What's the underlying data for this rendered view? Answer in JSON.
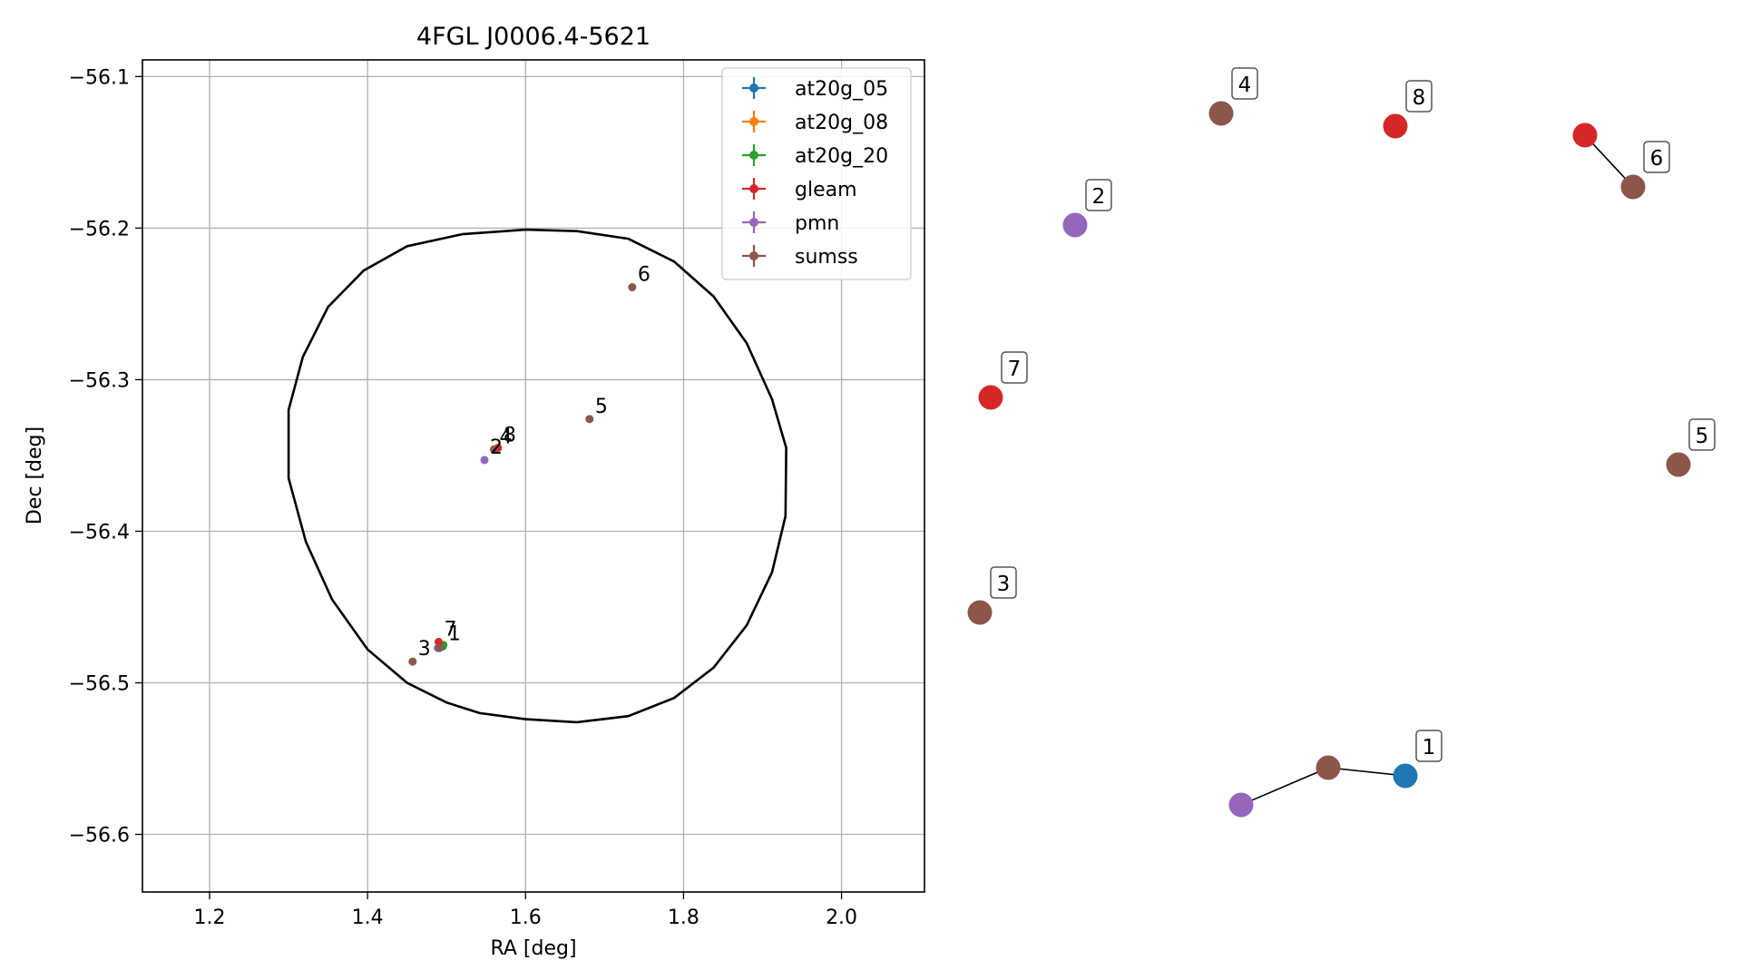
{
  "chart_data": {
    "type": "scatter",
    "title": "4FGL J0006.4-5621",
    "xlabel": "RA [deg]",
    "ylabel": "Dec [deg]",
    "xlim": [
      1.115,
      2.105
    ],
    "ylim": [
      -56.638,
      -56.089
    ],
    "xticks": [
      1.2,
      1.4,
      1.6,
      1.8,
      2.0
    ],
    "xtick_labels": [
      "1.2",
      "1.4",
      "1.6",
      "1.8",
      "2.0"
    ],
    "yticks": [
      -56.1,
      -56.2,
      -56.3,
      -56.4,
      -56.5,
      -56.6
    ],
    "ytick_labels": [
      "−56.1",
      "−56.2",
      "−56.3",
      "−56.4",
      "−56.5",
      "−56.6"
    ],
    "grid": true,
    "legend_position": "top-right",
    "series": [
      {
        "name": "at20g_05",
        "color": "#1f77b4",
        "points": [
          {
            "ra": 1.495,
            "dec": -56.476,
            "label": "1"
          }
        ]
      },
      {
        "name": "at20g_08",
        "color": "#ff7f0e",
        "points": []
      },
      {
        "name": "at20g_20",
        "color": "#2ca02c",
        "points": [
          {
            "ra": 1.496,
            "dec": -56.475
          }
        ]
      },
      {
        "name": "gleam",
        "color": "#d62728",
        "points": [
          {
            "ra": 1.49,
            "dec": -56.473,
            "label": "7"
          },
          {
            "ra": 1.565,
            "dec": -56.345,
            "label": "8"
          }
        ]
      },
      {
        "name": "pmn",
        "color": "#9467bd",
        "points": [
          {
            "ra": 1.548,
            "dec": -56.353,
            "label": "2"
          },
          {
            "ra": 1.489,
            "dec": -56.477
          }
        ]
      },
      {
        "name": "sumss",
        "color": "#8c564b",
        "points": [
          {
            "ra": 1.491,
            "dec": -56.477
          },
          {
            "ra": 1.457,
            "dec": -56.486,
            "label": "3"
          },
          {
            "ra": 1.56,
            "dec": -56.346,
            "label": "4"
          },
          {
            "ra": 1.681,
            "dec": -56.326,
            "label": "5"
          },
          {
            "ra": 1.735,
            "dec": -56.239,
            "label": "6"
          }
        ]
      }
    ],
    "ellipse": {
      "color": "#000000",
      "points": [
        [
          1.665,
          -56.202
        ],
        [
          1.73,
          -56.207
        ],
        [
          1.788,
          -56.222
        ],
        [
          1.838,
          -56.245
        ],
        [
          1.88,
          -56.276
        ],
        [
          1.912,
          -56.313
        ],
        [
          1.93,
          -56.345
        ],
        [
          1.929,
          -56.39
        ],
        [
          1.912,
          -56.427
        ],
        [
          1.88,
          -56.462
        ],
        [
          1.838,
          -56.49
        ],
        [
          1.788,
          -56.51
        ],
        [
          1.73,
          -56.522
        ],
        [
          1.665,
          -56.526
        ],
        [
          1.6,
          -56.524
        ],
        [
          1.542,
          -56.52
        ],
        [
          1.5,
          -56.513
        ],
        [
          1.45,
          -56.5
        ],
        [
          1.4,
          -56.478
        ],
        [
          1.355,
          -56.445
        ],
        [
          1.322,
          -56.407
        ],
        [
          1.3,
          -56.365
        ],
        [
          1.3,
          -56.32
        ],
        [
          1.318,
          -56.285
        ],
        [
          1.35,
          -56.252
        ],
        [
          1.395,
          -56.228
        ],
        [
          1.45,
          -56.212
        ],
        [
          1.52,
          -56.204
        ],
        [
          1.6,
          -56.201
        ],
        [
          1.665,
          -56.202
        ]
      ]
    }
  },
  "network": {
    "nodes": [
      {
        "id": "n1a",
        "color": "#8c564b"
      },
      {
        "id": "n1b",
        "color": "#1f77b4",
        "label": "1"
      },
      {
        "id": "n1c",
        "color": "#9467bd"
      },
      {
        "id": "n2",
        "color": "#9467bd",
        "label": "2"
      },
      {
        "id": "n3",
        "color": "#8c564b",
        "label": "3"
      },
      {
        "id": "n4",
        "color": "#8c564b",
        "label": "4"
      },
      {
        "id": "n5",
        "color": "#8c564b",
        "label": "5"
      },
      {
        "id": "n6a",
        "color": "#d62728"
      },
      {
        "id": "n6b",
        "color": "#8c564b",
        "label": "6"
      },
      {
        "id": "n7",
        "color": "#d62728",
        "label": "7"
      },
      {
        "id": "n8",
        "color": "#d62728",
        "label": "8"
      }
    ],
    "edges": [
      [
        "n1c",
        "n1a"
      ],
      [
        "n1a",
        "n1b"
      ],
      [
        "n6a",
        "n6b"
      ]
    ]
  }
}
